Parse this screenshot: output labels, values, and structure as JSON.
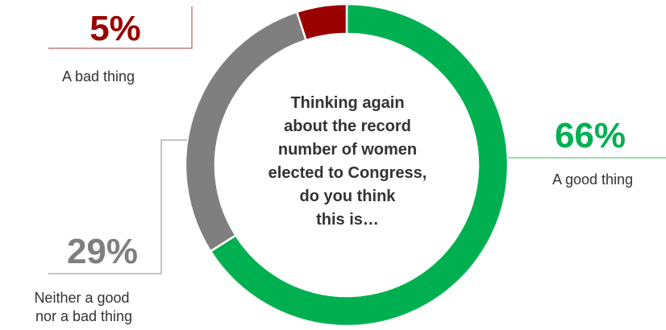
{
  "center_question": "Thinking again\nabout the record\nnumber of women\nelected to Congress,\ndo you think\nthis is…",
  "colors": {
    "good": "#00b050",
    "neither": "#7f7f7f",
    "bad": "#990000",
    "leader": "#bfbfbf"
  },
  "chart_data": {
    "type": "pie",
    "donut": true,
    "title": "",
    "slices": [
      {
        "label": "A good thing",
        "value": 66,
        "display": "66%",
        "color": "#00b050"
      },
      {
        "label": "Neither a good nor a bad thing",
        "value": 29,
        "display": "29%",
        "color": "#7f7f7f"
      },
      {
        "label": "A bad thing",
        "value": 5,
        "display": "5%",
        "color": "#990000"
      }
    ]
  }
}
